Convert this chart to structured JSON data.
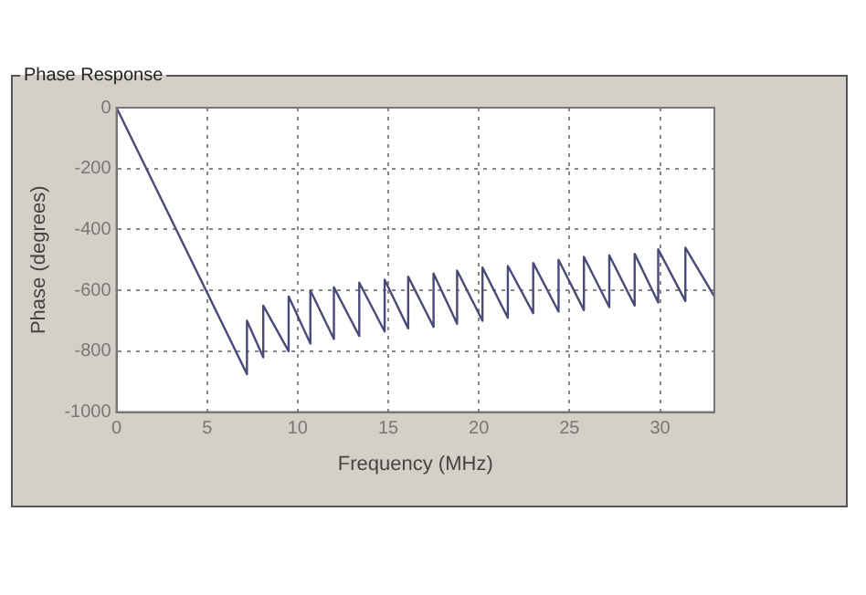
{
  "chart_data": {
    "type": "line",
    "title": "Phase Response",
    "xlabel": "Frequency (MHz)",
    "ylabel": "Phase (degrees)",
    "series": [
      {
        "color": "#4a4a7a",
        "x": [
          0,
          7.2,
          7.2,
          8.1,
          8.1,
          9.5,
          9.5,
          10.7,
          10.7,
          12.0,
          12.0,
          13.4,
          13.4,
          14.8,
          14.8,
          16.1,
          16.1,
          17.5,
          17.5,
          18.8,
          18.8,
          20.2,
          20.2,
          21.6,
          21.6,
          23.0,
          23.0,
          24.4,
          24.4,
          25.8,
          25.8,
          27.2,
          27.2,
          28.6,
          28.6,
          29.9,
          29.9,
          31.4,
          31.4,
          33
        ],
        "values": [
          0,
          -875,
          -700,
          -820,
          -650,
          -800,
          -620,
          -775,
          -600,
          -760,
          -590,
          -750,
          -575,
          -735,
          -565,
          -725,
          -555,
          -720,
          -545,
          -710,
          -535,
          -700,
          -525,
          -690,
          -520,
          -675,
          -510,
          -670,
          -500,
          -665,
          -490,
          -655,
          -485,
          -650,
          -480,
          -640,
          -465,
          -635,
          -460,
          -620
        ]
      }
    ],
    "xlim": [
      0,
      33
    ],
    "xticks": [
      0,
      5,
      10,
      15,
      20,
      25,
      30
    ],
    "ylim": [
      -1000,
      0
    ],
    "yticks": [
      -1000,
      -800,
      -600,
      -400,
      -200,
      0
    ],
    "grid": true,
    "legend": false,
    "marker": "none",
    "line_style": "solid"
  }
}
